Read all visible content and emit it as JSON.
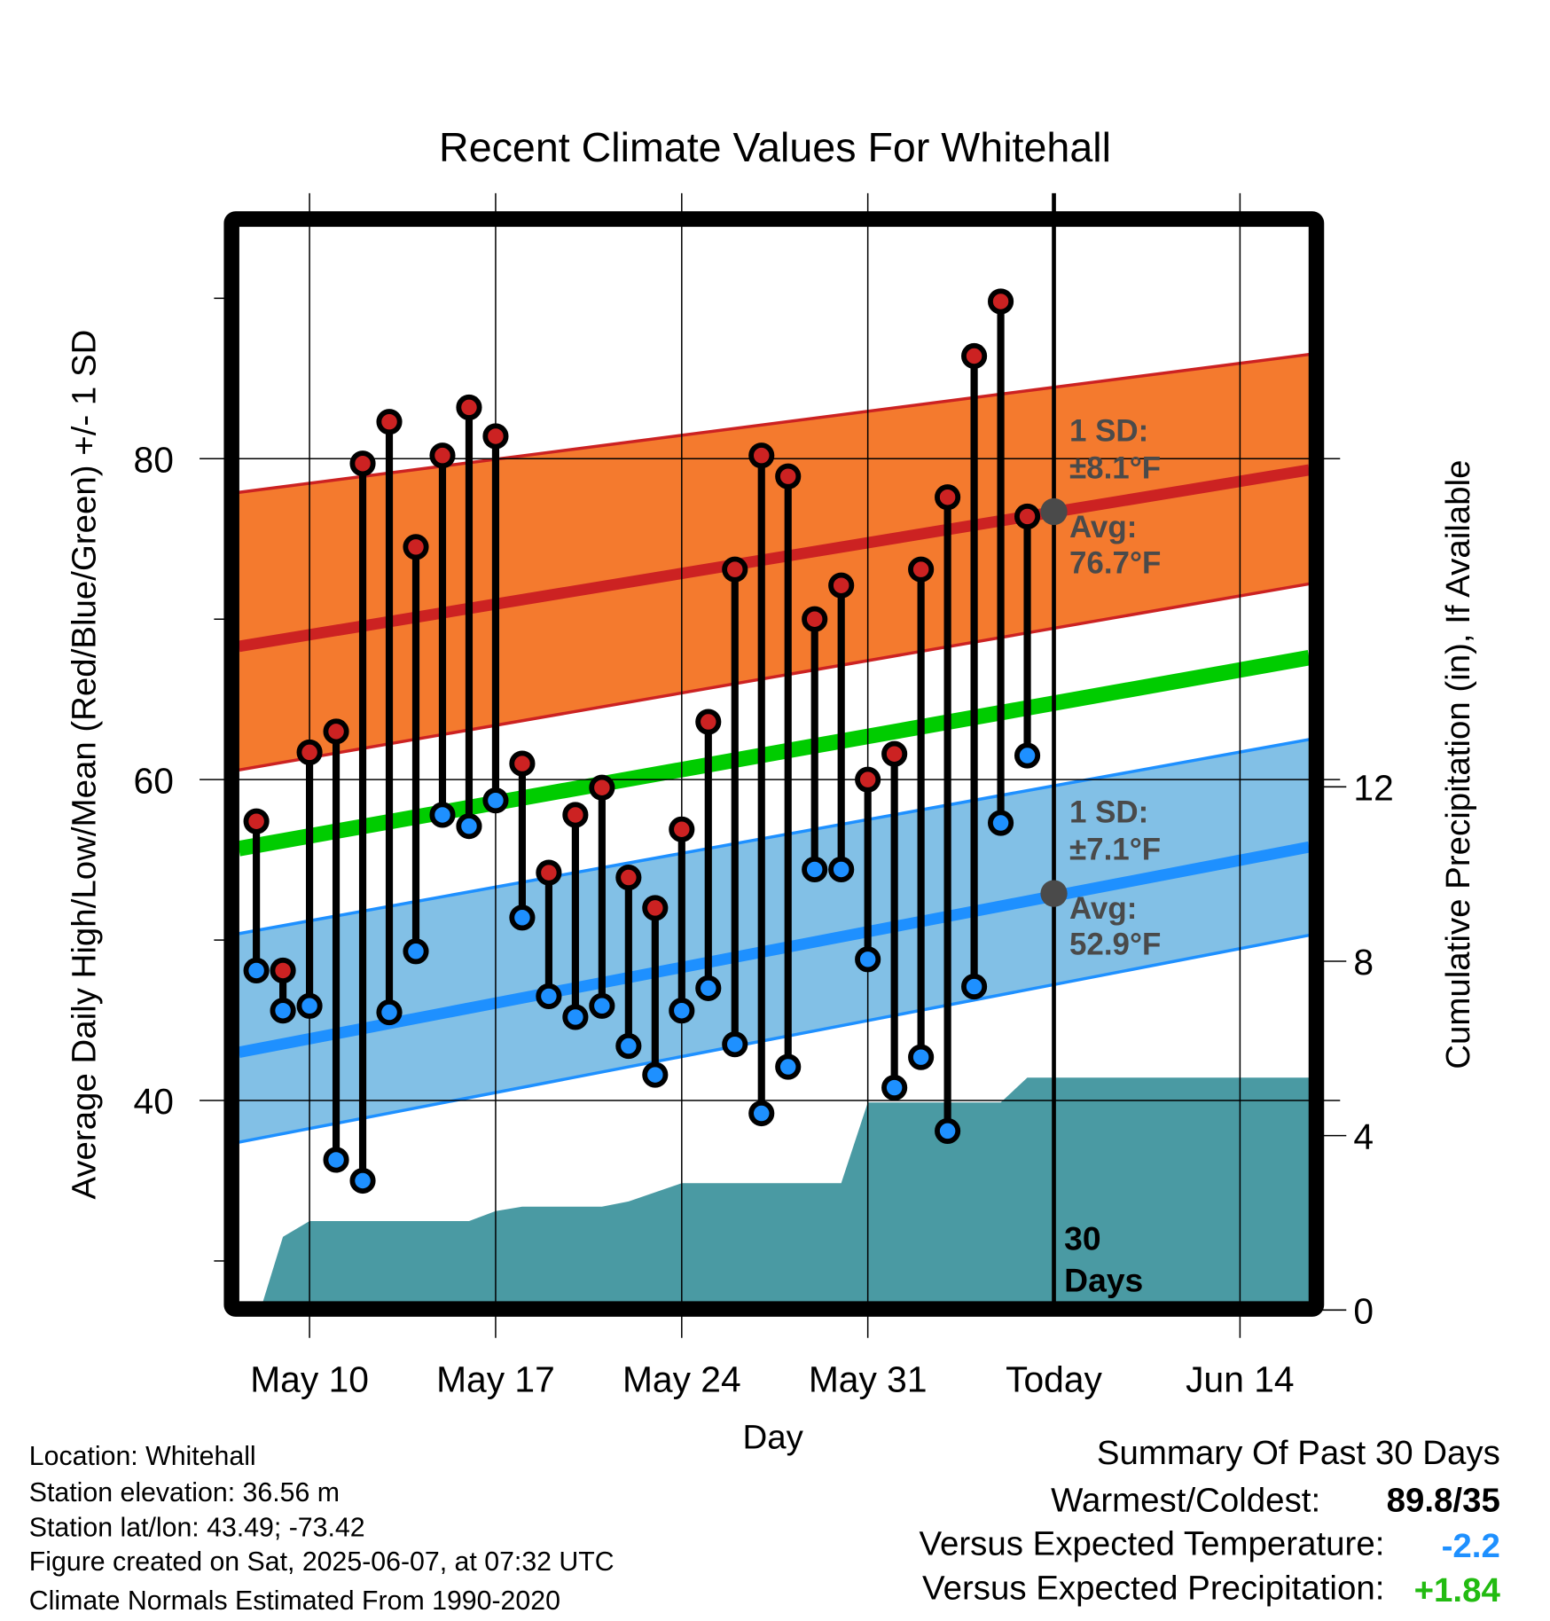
{
  "chart_data": {
    "type": "line",
    "title": "Recent Climate Values For Whitehall",
    "xlabel": "Day",
    "ylabel": "Average Daily High/Low/Mean (Red/Blue/Green) +/- 1 SD",
    "y2label": "Cumulative Precipitation (in), If Available",
    "xlim_days_from_may8": [
      -0.66,
      39.6
    ],
    "ylim": [
      27.1,
      94.9
    ],
    "y2lim": [
      0,
      14.1
    ],
    "x_ticks": [
      {
        "day": 2,
        "label": "May 10"
      },
      {
        "day": 9,
        "label": "May 17"
      },
      {
        "day": 16,
        "label": "May 24"
      },
      {
        "day": 23,
        "label": "May 31"
      },
      {
        "day": 30,
        "label": "Today"
      },
      {
        "day": 37,
        "label": "Jun 14"
      }
    ],
    "y_ticks": [
      {
        "value": 40,
        "label": "40"
      },
      {
        "value": 60,
        "label": "60"
      },
      {
        "value": 80,
        "label": "80"
      }
    ],
    "y_minor_ticks": [
      30,
      50,
      70,
      90
    ],
    "y2_ticks": [
      {
        "value": 0,
        "label": "0"
      },
      {
        "value": 4,
        "label": "4"
      },
      {
        "value": 8,
        "label": "8"
      },
      {
        "value": 12,
        "label": "12"
      }
    ],
    "grid": true,
    "dates": [
      "May 8",
      "May 9",
      "May 10",
      "May 11",
      "May 12",
      "May 13",
      "May 14",
      "May 15",
      "May 16",
      "May 17",
      "May 18",
      "May 19",
      "May 20",
      "May 21",
      "May 22",
      "May 23",
      "May 24",
      "May 25",
      "May 26",
      "May 27",
      "May 28",
      "May 29",
      "May 30",
      "May 31",
      "Jun 1",
      "Jun 2",
      "Jun 3",
      "Jun 4",
      "Jun 5",
      "Jun 6"
    ],
    "highs": [
      57.4,
      48.1,
      61.7,
      63.0,
      79.7,
      82.3,
      74.5,
      80.2,
      83.2,
      81.4,
      61.0,
      54.2,
      57.8,
      59.5,
      53.9,
      52.0,
      56.9,
      63.6,
      73.1,
      80.2,
      78.9,
      70.0,
      72.1,
      60.0,
      61.6,
      73.1,
      77.6,
      86.4,
      89.8,
      76.4
    ],
    "lows": [
      48.1,
      45.6,
      45.9,
      36.3,
      35.0,
      45.5,
      49.3,
      57.8,
      57.1,
      58.7,
      51.4,
      46.5,
      45.2,
      45.9,
      43.4,
      41.6,
      45.6,
      47.0,
      43.5,
      39.2,
      42.1,
      54.4,
      54.4,
      48.8,
      40.8,
      42.7,
      38.1,
      47.1,
      57.3,
      61.5
    ],
    "normals": {
      "high_mean": [
        68.3,
        79.3
      ],
      "high_upper": [
        77.9,
        86.5
      ],
      "high_lower": [
        60.6,
        72.2
      ],
      "mean": [
        55.7,
        67.6
      ],
      "low_mean": [
        43.0,
        55.8
      ],
      "low_upper": [
        50.4,
        62.5
      ],
      "low_lower": [
        37.4,
        50.3
      ]
    },
    "precip": {
      "days": [
        0.15,
        1,
        2,
        8,
        9,
        10,
        13,
        14,
        16,
        22,
        23,
        28,
        29,
        39.6
      ],
      "values": [
        0,
        1.68,
        2.04,
        2.04,
        2.27,
        2.37,
        2.37,
        2.49,
        2.91,
        2.91,
        4.76,
        4.76,
        5.33,
        5.33
      ]
    },
    "today_day": 30,
    "annotations": {
      "high_sd_l1": "1 SD:",
      "high_sd_l2": "±8.1°F",
      "high_avg_l1": "Avg:",
      "high_avg_l2": "76.7°F",
      "high_avg_value": 76.7,
      "low_sd_l1": "1 SD:",
      "low_sd_l2": "±7.1°F",
      "low_avg_l1": "Avg:",
      "low_avg_l2": "52.9°F",
      "low_avg_value": 52.9,
      "days_l1": "30",
      "days_l2": "Days"
    },
    "colors": {
      "high": "#cc2222",
      "high_band": "#f47a2e",
      "low": "#1e90ff",
      "low_band": "#82c0e6",
      "mean": "#00cc00",
      "precip": "#4a9aa3"
    }
  },
  "footer": {
    "location": "Location: Whitehall",
    "elevation": "Station elevation: 36.56 m",
    "latlon": "Station lat/lon: 43.49; -73.42",
    "created": "Figure created on Sat, 2025-06-07, at 07:32 UTC",
    "normals": "Climate Normals Estimated From 1990-2020"
  },
  "summary": {
    "title": "Summary Of Past 30 Days",
    "warmest_label": "Warmest/Coldest:",
    "warmest_value": "89.8/35",
    "temp_label": "Versus Expected Temperature:",
    "temp_value": "-2.2",
    "precip_label": "Versus Expected Precipitation:",
    "precip_value": "+1.84"
  }
}
